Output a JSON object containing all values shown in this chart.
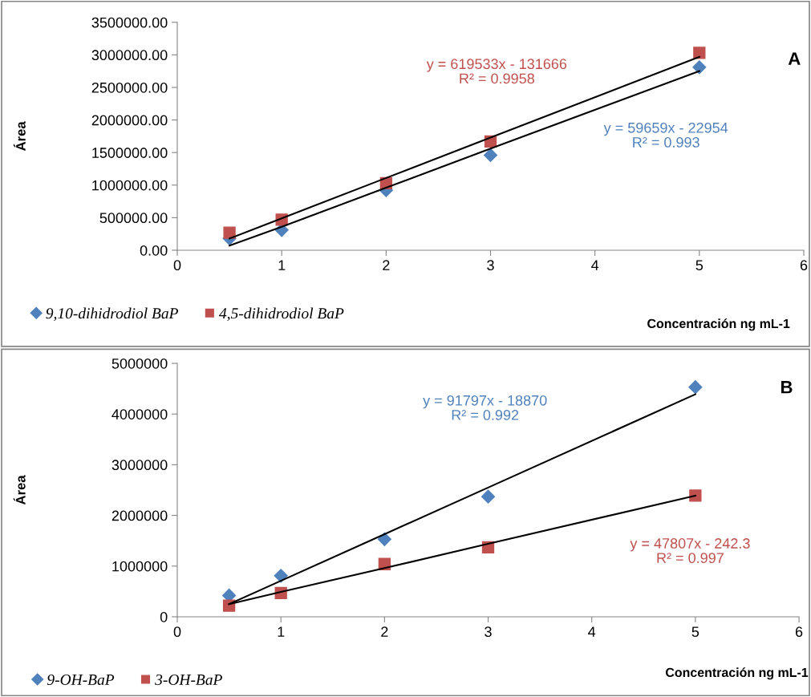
{
  "chart_data": [
    {
      "type": "scatter",
      "title": "A",
      "xlabel": "Concentración ng mL-1",
      "ylabel": "Área",
      "x": [
        0.5,
        1,
        2,
        3,
        5
      ],
      "series": [
        {
          "name": "9,10-dihidrodiol BaP",
          "color": "#4f81bd",
          "marker": "diamond",
          "values": [
            180000,
            310000,
            920000,
            1460000,
            2810000
          ]
        },
        {
          "name": "4,5-dihidrodiol BaP",
          "color": "#c0504d",
          "marker": "square",
          "values": [
            270000,
            470000,
            1030000,
            1670000,
            3030000
          ]
        },
        {
          "type": "line",
          "color": "#000000",
          "values": [
            70000,
            360000,
            960000,
            1560000,
            2750000
          ]
        },
        {
          "type": "line",
          "color": "#000000",
          "values": [
            180000,
            490000,
            1110000,
            1730000,
            2970000
          ]
        }
      ],
      "annotations": [
        "y = 619533x - 131666\nR² = 0.9958",
        "y = 59659x - 22954\nR² = 0.993"
      ],
      "xlim": [
        0,
        6
      ],
      "xticks": [
        0,
        1,
        2,
        3,
        4,
        5,
        6
      ],
      "ylim": [
        0,
        3500000
      ],
      "yticks": [
        {
          "value": 0,
          "label": "0.00"
        },
        {
          "value": 500000,
          "label": "500000.00"
        },
        {
          "value": 1000000,
          "label": "1000000.00"
        },
        {
          "value": 1500000,
          "label": "1500000.00"
        },
        {
          "value": 2000000,
          "label": "2000000.00"
        },
        {
          "value": 2500000,
          "label": "2500000.00"
        },
        {
          "value": 3000000,
          "label": "3000000.00"
        },
        {
          "value": 3500000,
          "label": "3500000.00"
        }
      ],
      "legend": "bottom left",
      "grid": false
    },
    {
      "type": "scatter",
      "title": "B",
      "xlabel": "Concentración ng mL-1",
      "ylabel": "Área",
      "x": [
        0.5,
        1,
        2,
        3,
        5
      ],
      "series": [
        {
          "name": "9-OH-BaP",
          "color": "#4f81bd",
          "marker": "diamond",
          "values": [
            420000,
            810000,
            1530000,
            2370000,
            4530000
          ]
        },
        {
          "name": "3-OH-BaP",
          "color": "#c0504d",
          "marker": "square",
          "values": [
            220000,
            470000,
            1040000,
            1370000,
            2390000
          ]
        },
        {
          "type": "line",
          "color": "#000000",
          "values": [
            250000,
            710000,
            1630000,
            2550000,
            4390000
          ]
        },
        {
          "type": "line",
          "color": "#000000",
          "values": [
            250000,
            490000,
            960000,
            1440000,
            2390000
          ]
        }
      ],
      "annotations": [
        "y = 91797x - 18870\nR² = 0.992",
        "y = 47807x - 242.3\nR² = 0.997"
      ],
      "xlim": [
        0,
        6
      ],
      "xticks": [
        0,
        1,
        2,
        3,
        4,
        5,
        6
      ],
      "ylim": [
        0,
        5000000
      ],
      "yticks": [
        0,
        1000000,
        2000000,
        3000000,
        4000000,
        5000000
      ],
      "legend": "bottom left",
      "grid": false
    }
  ]
}
